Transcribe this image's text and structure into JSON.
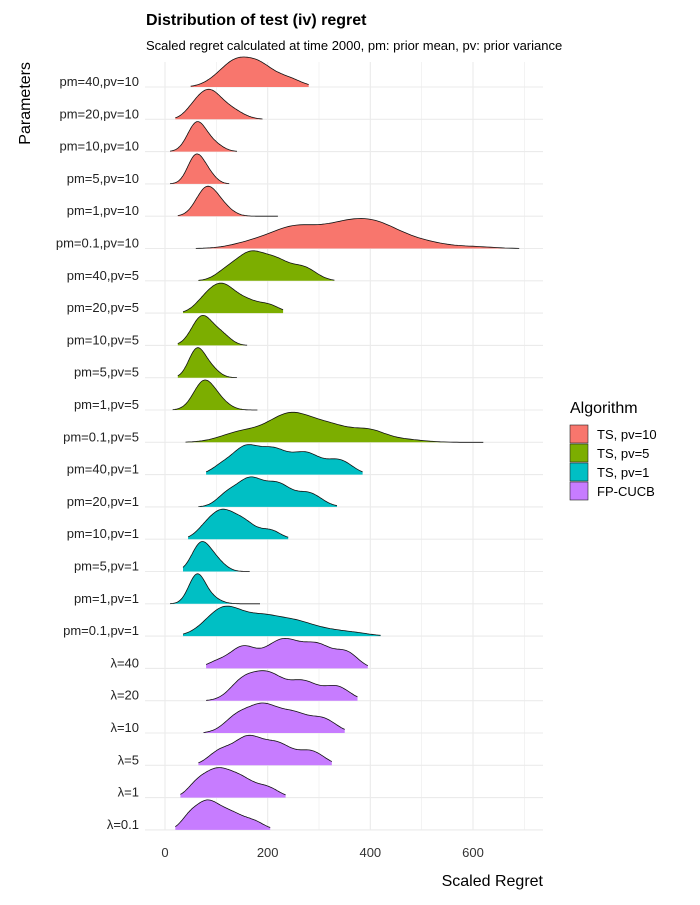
{
  "chart_data": {
    "type": "ridgeline",
    "title": "Distribution of test (iv) regret",
    "subtitle": "Scaled regret calculated at time 2000, pm: prior mean, pv: prior variance",
    "xlabel": "Scaled Regret",
    "ylabel": "Parameters",
    "xlim": [
      -50,
      730
    ],
    "x_ticks": [
      0,
      200,
      400,
      600
    ],
    "legend": {
      "title": "Algorithm",
      "placement": "right",
      "entries": [
        {
          "name": "TS, pv=10",
          "color": "#F8766D"
        },
        {
          "name": "TS, pv=5",
          "color": "#7CAE00"
        },
        {
          "name": "TS, pv=1",
          "color": "#00BFC4"
        },
        {
          "name": "FP-CUCB",
          "color": "#C77CFF"
        }
      ]
    },
    "rows": [
      {
        "label": "pm=40,pv=10",
        "group": 0,
        "min": 50,
        "max": 280,
        "peaks": [
          [
            140,
            1.0,
            28
          ],
          [
            185,
            0.72,
            25
          ],
          [
            235,
            0.38,
            28
          ],
          [
            100,
            0.2,
            25
          ]
        ]
      },
      {
        "label": "pm=20,pv=10",
        "group": 0,
        "min": 20,
        "max": 190,
        "peaks": [
          [
            85,
            1.0,
            22
          ],
          [
            125,
            0.4,
            25
          ],
          [
            55,
            0.3,
            18
          ]
        ]
      },
      {
        "label": "pm=10,pv=10",
        "group": 0,
        "min": 10,
        "max": 140,
        "peaks": [
          [
            62,
            1.0,
            18
          ],
          [
            95,
            0.25,
            18
          ]
        ]
      },
      {
        "label": "pm=5,pv=10",
        "group": 0,
        "min": 10,
        "max": 125,
        "peaks": [
          [
            60,
            1.0,
            16
          ],
          [
            85,
            0.3,
            15
          ]
        ]
      },
      {
        "label": "pm=1,pv=10",
        "group": 0,
        "min": 25,
        "max": 220,
        "peaks": [
          [
            80,
            1.0,
            20
          ],
          [
            110,
            0.35,
            20
          ]
        ]
      },
      {
        "label": "pm=0.1,pv=10",
        "group": 0,
        "min": 60,
        "max": 690,
        "peaks": [
          [
            250,
            0.9,
            45
          ],
          [
            350,
            1.0,
            50
          ],
          [
            420,
            0.8,
            45
          ],
          [
            500,
            0.28,
            45
          ],
          [
            170,
            0.25,
            40
          ],
          [
            600,
            0.08,
            40
          ]
        ]
      },
      {
        "label": "pm=40,pv=5",
        "group": 1,
        "min": 65,
        "max": 330,
        "peaks": [
          [
            165,
            1.0,
            26
          ],
          [
            215,
            0.75,
            26
          ],
          [
            270,
            0.5,
            25
          ],
          [
            120,
            0.35,
            22
          ]
        ]
      },
      {
        "label": "pm=20,pv=5",
        "group": 1,
        "min": 35,
        "max": 230,
        "peaks": [
          [
            110,
            1.0,
            25
          ],
          [
            160,
            0.42,
            25
          ],
          [
            205,
            0.25,
            20
          ],
          [
            75,
            0.3,
            20
          ]
        ]
      },
      {
        "label": "pm=10,pv=5",
        "group": 1,
        "min": 25,
        "max": 160,
        "peaks": [
          [
            72,
            1.0,
            20
          ],
          [
            110,
            0.35,
            18
          ]
        ]
      },
      {
        "label": "pm=5,pv=5",
        "group": 1,
        "min": 25,
        "max": 140,
        "peaks": [
          [
            62,
            1.0,
            16
          ],
          [
            90,
            0.3,
            16
          ]
        ]
      },
      {
        "label": "pm=1,pv=5",
        "group": 1,
        "min": 15,
        "max": 180,
        "peaks": [
          [
            75,
            1.0,
            20
          ],
          [
            105,
            0.3,
            20
          ]
        ]
      },
      {
        "label": "pm=0.1,pv=5",
        "group": 1,
        "min": 40,
        "max": 620,
        "peaks": [
          [
            240,
            1.0,
            40
          ],
          [
            320,
            0.65,
            45
          ],
          [
            150,
            0.4,
            40
          ],
          [
            400,
            0.35,
            30
          ],
          [
            460,
            0.12,
            40
          ]
        ]
      },
      {
        "label": "pm=40,pv=1",
        "group": 2,
        "min": 80,
        "max": 385,
        "peaks": [
          [
            155,
            1.0,
            25
          ],
          [
            210,
            0.95,
            28
          ],
          [
            275,
            0.82,
            28
          ],
          [
            340,
            0.55,
            25
          ],
          [
            110,
            0.3,
            20
          ]
        ]
      },
      {
        "label": "pm=20,pv=1",
        "group": 2,
        "min": 65,
        "max": 335,
        "peaks": [
          [
            165,
            1.0,
            25
          ],
          [
            220,
            0.8,
            25
          ],
          [
            280,
            0.5,
            25
          ],
          [
            120,
            0.4,
            20
          ]
        ]
      },
      {
        "label": "pm=10,pv=1",
        "group": 2,
        "min": 45,
        "max": 240,
        "peaks": [
          [
            110,
            1.0,
            25
          ],
          [
            155,
            0.55,
            22
          ],
          [
            205,
            0.32,
            20
          ],
          [
            75,
            0.2,
            18
          ]
        ]
      },
      {
        "label": "pm=5,pv=1",
        "group": 2,
        "min": 35,
        "max": 165,
        "peaks": [
          [
            70,
            1.0,
            18
          ],
          [
            100,
            0.35,
            18
          ]
        ]
      },
      {
        "label": "pm=1,pv=1",
        "group": 2,
        "min": 10,
        "max": 185,
        "peaks": [
          [
            62,
            1.0,
            16
          ],
          [
            90,
            0.2,
            18
          ]
        ]
      },
      {
        "label": "pm=0.1,pv=1",
        "group": 2,
        "min": 35,
        "max": 420,
        "peaks": [
          [
            115,
            1.0,
            35
          ],
          [
            190,
            0.62,
            35
          ],
          [
            255,
            0.45,
            35
          ],
          [
            320,
            0.18,
            35
          ],
          [
            375,
            0.08,
            30
          ]
        ]
      },
      {
        "label": "λ=40",
        "group": 3,
        "min": 80,
        "max": 395,
        "peaks": [
          [
            150,
            0.7,
            25
          ],
          [
            230,
            1.0,
            35
          ],
          [
            300,
            0.72,
            28
          ],
          [
            355,
            0.5,
            22
          ],
          [
            100,
            0.2,
            20
          ]
        ]
      },
      {
        "label": "λ=20",
        "group": 3,
        "min": 80,
        "max": 375,
        "peaks": [
          [
            150,
            0.65,
            25
          ],
          [
            200,
            1.0,
            30
          ],
          [
            270,
            0.7,
            28
          ],
          [
            335,
            0.52,
            25
          ]
        ]
      },
      {
        "label": "λ=10",
        "group": 3,
        "min": 75,
        "max": 350,
        "peaks": [
          [
            140,
            0.6,
            25
          ],
          [
            190,
            1.0,
            28
          ],
          [
            250,
            0.75,
            30
          ],
          [
            310,
            0.5,
            25
          ]
        ]
      },
      {
        "label": "λ=5",
        "group": 3,
        "min": 65,
        "max": 325,
        "peaks": [
          [
            105,
            0.45,
            22
          ],
          [
            160,
            1.0,
            28
          ],
          [
            220,
            0.75,
            28
          ],
          [
            285,
            0.5,
            25
          ]
        ]
      },
      {
        "label": "λ=1",
        "group": 3,
        "min": 30,
        "max": 235,
        "peaks": [
          [
            100,
            1.0,
            28
          ],
          [
            150,
            0.6,
            25
          ],
          [
            200,
            0.35,
            22
          ],
          [
            60,
            0.3,
            18
          ]
        ]
      },
      {
        "label": "λ=0.1",
        "group": 3,
        "min": 20,
        "max": 205,
        "peaks": [
          [
            80,
            1.0,
            25
          ],
          [
            130,
            0.55,
            25
          ],
          [
            175,
            0.25,
            20
          ],
          [
            45,
            0.25,
            15
          ]
        ]
      }
    ]
  }
}
